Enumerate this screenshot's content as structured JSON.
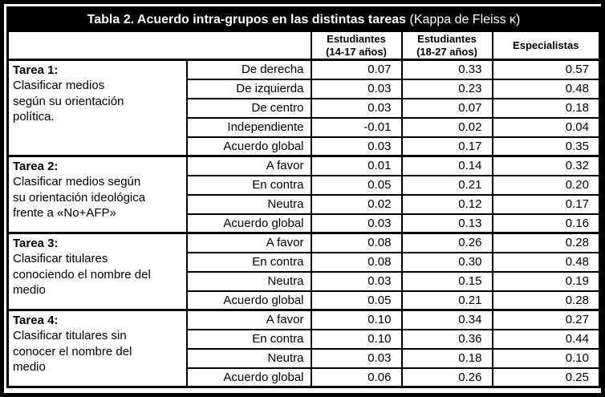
{
  "colors": {
    "title_bg": "#000000",
    "title_text": "#ffffff",
    "border": "#000000",
    "cell_bg": "#ffffff",
    "text": "#000000"
  },
  "table": {
    "title_bold": "Tabla 2. Acuerdo intra-grupos en las distintas tareas",
    "title_note": " (Kappa de Fleiss κ)"
  },
  "header": {
    "columns": [
      {
        "line1": "Estudiantes",
        "line2": "(14-17 años)"
      },
      {
        "line1": "Estudiantes",
        "line2": "(18-27 años)"
      },
      {
        "line1": "Especialistas",
        "line2": ""
      }
    ]
  },
  "tasks": [
    {
      "title": "Tarea 1:",
      "description": "Clasificar medios\nsegún su orientación\npolítica.",
      "rows": [
        {
          "category": "De derecha",
          "values": [
            "0.07",
            "0.33",
            "0.57"
          ]
        },
        {
          "category": "De izquierda",
          "values": [
            "0.03",
            "0.23",
            "0.48"
          ]
        },
        {
          "category": "De centro",
          "values": [
            "0.03",
            "0.07",
            "0.18"
          ]
        },
        {
          "category": "Independiente",
          "values": [
            "-0.01",
            "0.02",
            "0.04"
          ]
        },
        {
          "category": "Acuerdo global",
          "values": [
            "0.03",
            "0.17",
            "0.35"
          ]
        }
      ]
    },
    {
      "title": "Tarea 2:",
      "description": "Clasificar medios según\nsu orientación ideológica\nfrente a «No+AFP»",
      "rows": [
        {
          "category": "A favor",
          "values": [
            "0.01",
            "0.14",
            "0.32"
          ]
        },
        {
          "category": "En contra",
          "values": [
            "0.05",
            "0.21",
            "0.20"
          ]
        },
        {
          "category": "Neutra",
          "values": [
            "0.02",
            "0.12",
            "0.17"
          ]
        },
        {
          "category": "Acuerdo global",
          "values": [
            "0.03",
            "0.13",
            "0.16"
          ]
        }
      ]
    },
    {
      "title": "Tarea 3:",
      "description": "Clasificar titulares\nconociendo el nombre del\nmedio",
      "rows": [
        {
          "category": "A favor",
          "values": [
            "0.08",
            "0.26",
            "0.28"
          ]
        },
        {
          "category": "En contra",
          "values": [
            "0.08",
            "0.30",
            "0.48"
          ]
        },
        {
          "category": "Neutra",
          "values": [
            "0.03",
            "0.15",
            "0.19"
          ]
        },
        {
          "category": "Acuerdo global",
          "values": [
            "0.05",
            "0.21",
            "0.28"
          ]
        }
      ]
    },
    {
      "title": "Tarea 4:",
      "description": "Clasificar titulares sin\nconocer el nombre del\nmedio",
      "rows": [
        {
          "category": "A favor",
          "values": [
            "0.10",
            "0.34",
            "0.27"
          ]
        },
        {
          "category": "En contra",
          "values": [
            "0.10",
            "0.36",
            "0.44"
          ]
        },
        {
          "category": "Neutra",
          "values": [
            "0.03",
            "0.18",
            "0.10"
          ]
        },
        {
          "category": "Acuerdo global",
          "values": [
            "0.06",
            "0.26",
            "0.25"
          ]
        }
      ]
    }
  ]
}
